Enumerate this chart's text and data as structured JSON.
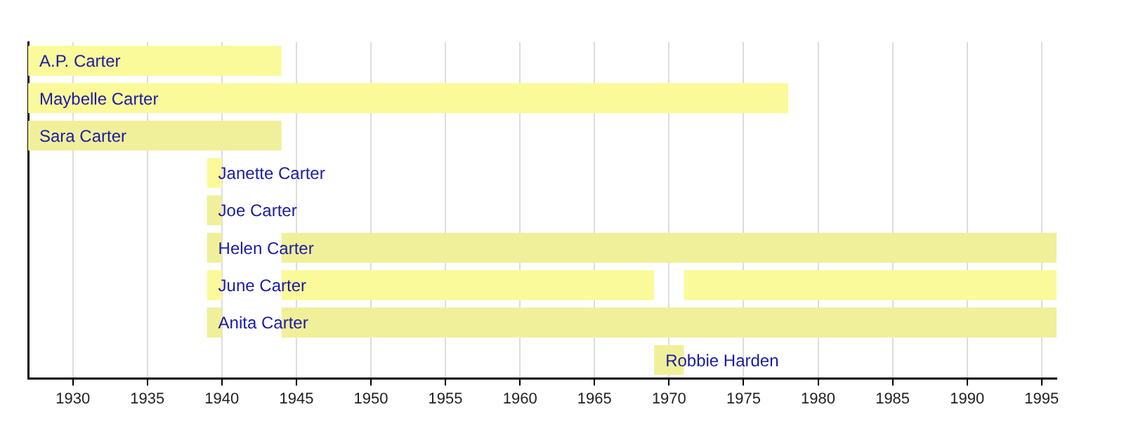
{
  "chart_data": {
    "type": "bar",
    "orientation": "horizontal",
    "categories": [
      "A.P. Carter",
      "Maybelle Carter",
      "Sara Carter",
      "Janette Carter",
      "Joe Carter",
      "Helen Carter",
      "June Carter",
      "Anita Carter",
      "Robbie Harden"
    ],
    "series": [
      {
        "colors": [
          "#fafa9a",
          "#fafa9a",
          "#f0f09a",
          "#fafa9a",
          "#f0f09a",
          "#f0f09a",
          "#fafa9a",
          "#f0f09a",
          "#f0f09a"
        ],
        "base": [
          1927,
          1927,
          1927,
          1939,
          1939,
          1939,
          1939,
          1939,
          1969
        ],
        "values": [
          17,
          51,
          17,
          1,
          1,
          1,
          1,
          1,
          2
        ]
      },
      {
        "colors": [
          "#fafa9a",
          "#fafa9a",
          "#f0f09a",
          "#fafa9a",
          "#f0f09a",
          "#f0f09a",
          "#fafa9a",
          "#f0f09a",
          "#f0f09a"
        ],
        "base": [
          null,
          null,
          null,
          null,
          null,
          1944,
          1944,
          1944,
          null
        ],
        "values": [
          null,
          null,
          null,
          null,
          null,
          52,
          25,
          52,
          null
        ]
      },
      {
        "colors": [
          "#fafa9a",
          "#fafa9a",
          "#f0f09a",
          "#fafa9a",
          "#f0f09a",
          "#f0f09a",
          "#fafa9a",
          "#f0f09a",
          "#f0f09a"
        ],
        "base": [
          null,
          null,
          null,
          null,
          null,
          null,
          1971,
          null,
          null
        ],
        "values": [
          null,
          null,
          null,
          null,
          null,
          null,
          25,
          null,
          null
        ]
      }
    ],
    "xlim": [
      1927,
      1996
    ],
    "xticks": [
      1930,
      1935,
      1940,
      1945,
      1950,
      1955,
      1960,
      1965,
      1970,
      1975,
      1980,
      1985,
      1990,
      1995
    ],
    "grid": "x",
    "legend": false
  }
}
